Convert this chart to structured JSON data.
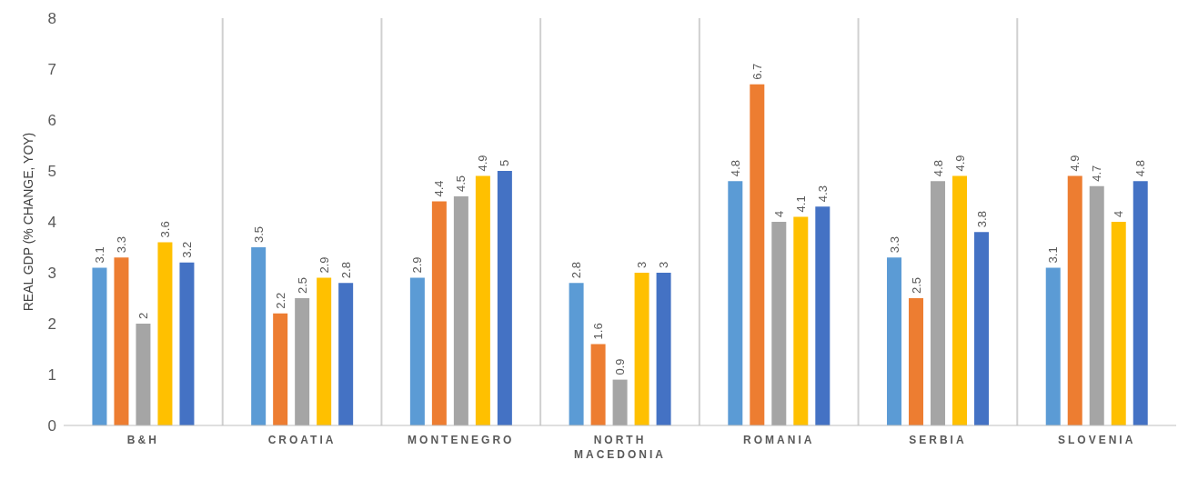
{
  "chart_data": {
    "type": "bar",
    "ylabel": "REAL GDP (% CHANGE, YOY)",
    "categories": [
      "B&H",
      "CROATIA",
      "MONTENEGRO",
      "NORTH MACEDONIA",
      "ROMANIA",
      "SERBIA",
      "SLOVENIA"
    ],
    "series": [
      {
        "color": "#5b9bd5",
        "values": [
          3.1,
          3.5,
          2.9,
          2.8,
          4.8,
          3.3,
          3.1
        ]
      },
      {
        "color": "#ed7d31",
        "values": [
          3.3,
          2.2,
          4.4,
          1.6,
          6.7,
          2.5,
          4.9
        ]
      },
      {
        "color": "#a5a5a5",
        "values": [
          2,
          2.5,
          4.5,
          0.9,
          4,
          4.8,
          4.7
        ]
      },
      {
        "color": "#ffc000",
        "values": [
          3.6,
          2.9,
          4.9,
          3,
          4.1,
          4.9,
          4
        ]
      },
      {
        "color": "#4472c4",
        "values": [
          3.2,
          2.8,
          5,
          3,
          4.3,
          3.8,
          4.8
        ]
      }
    ],
    "ylim": [
      0,
      8
    ],
    "yticks": [
      0,
      1,
      2,
      3,
      4,
      5,
      6,
      7,
      8
    ],
    "grid": "x",
    "legend": false,
    "data_labels": true
  }
}
